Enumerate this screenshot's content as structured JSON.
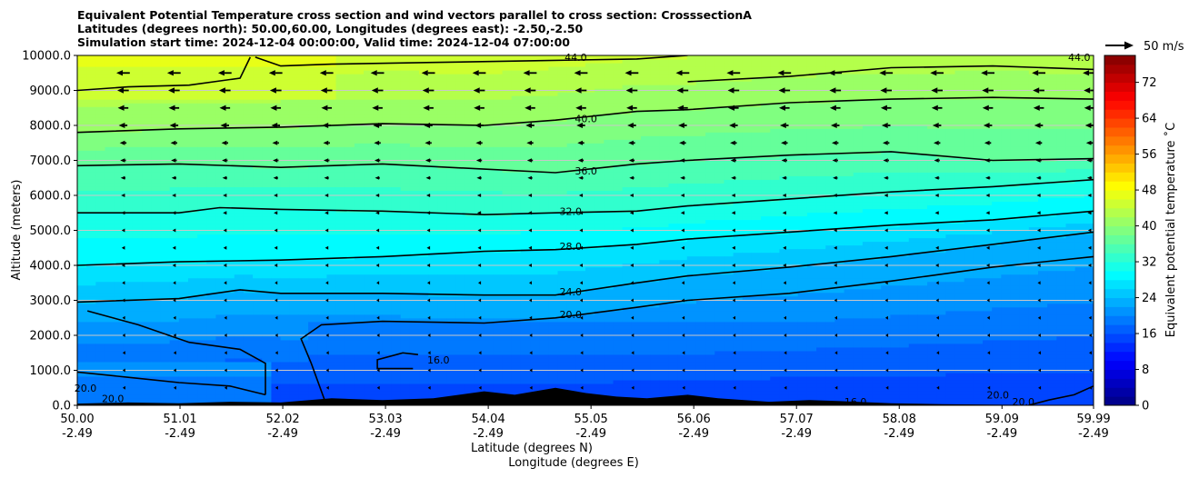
{
  "title_lines": [
    "Equivalent Potential Temperature cross section and wind vectors parallel to cross section: CrosssectionA",
    "Latitudes (degrees north): 50.00,60.00, Longitudes (degrees east): -2.50,-2.50",
    "Simulation start time: 2024-12-04 00:00:00, Valid time: 2024-12-04 07:00:00"
  ],
  "colors": {
    "terrain": "#000000",
    "contour": "#000000",
    "grid": "#c8c8c8"
  },
  "chart_data": {
    "type": "heatmap",
    "variable": "Equivalent potential temperature",
    "xlabel_lines": [
      "Latitude (degrees N)",
      "Longitude (degrees E)"
    ],
    "ylabel": "Altitude (meters)",
    "x_ticks": [
      {
        "lat": "50.00",
        "lon": "-2.49"
      },
      {
        "lat": "51.01",
        "lon": "-2.49"
      },
      {
        "lat": "52.02",
        "lon": "-2.49"
      },
      {
        "lat": "53.03",
        "lon": "-2.49"
      },
      {
        "lat": "54.04",
        "lon": "-2.49"
      },
      {
        "lat": "55.05",
        "lon": "-2.49"
      },
      {
        "lat": "56.06",
        "lon": "-2.49"
      },
      {
        "lat": "57.07",
        "lon": "-2.49"
      },
      {
        "lat": "58.08",
        "lon": "-2.49"
      },
      {
        "lat": "59.09",
        "lon": "-2.49"
      },
      {
        "lat": "59.99",
        "lon": "-2.49"
      }
    ],
    "x_range": [
      50.0,
      59.99
    ],
    "y_ticks": [
      "0.0",
      "1000.0",
      "2000.0",
      "3000.0",
      "4000.0",
      "5000.0",
      "6000.0",
      "7000.0",
      "8000.0",
      "9000.0",
      "10000.0"
    ],
    "y_range": [
      0,
      10000
    ],
    "grid": "horizontal",
    "colorbar": {
      "label": "Equivalent potential temperature $^\\circ$C",
      "label_display": "Equivalent potential temperature ˚C",
      "ticks": [
        "0",
        "8",
        "16",
        "24",
        "32",
        "40",
        "48",
        "56",
        "64",
        "72"
      ],
      "range": [
        0,
        78
      ],
      "colormap": "jet"
    },
    "quiver_key": {
      "label": "50 m/s",
      "value": 50
    },
    "contour_levels": [
      16,
      20,
      24,
      28,
      32,
      36,
      40,
      44
    ],
    "contour_labels": [
      {
        "text": "44.0",
        "lat": 54.9,
        "alt": 9950
      },
      {
        "text": "40.0",
        "lat": 55.0,
        "alt": 8200
      },
      {
        "text": "36.0",
        "lat": 55.0,
        "alt": 6700
      },
      {
        "text": "32.0",
        "lat": 54.85,
        "alt": 5550
      },
      {
        "text": "28.0",
        "lat": 54.85,
        "alt": 4550
      },
      {
        "text": "24.0",
        "lat": 54.85,
        "alt": 3250
      },
      {
        "text": "20.0",
        "lat": 54.85,
        "alt": 2600
      },
      {
        "text": "16.0",
        "lat": 53.55,
        "alt": 1300
      },
      {
        "text": "20.0",
        "lat": 50.08,
        "alt": 500
      },
      {
        "text": "20.0",
        "lat": 50.35,
        "alt": 200
      },
      {
        "text": "16.0",
        "lat": 56.15,
        "alt": 100
      },
      {
        "text": "16.0",
        "lat": 57.65,
        "alt": 100
      },
      {
        "text": "20.0",
        "lat": 59.05,
        "alt": 300
      },
      {
        "text": "20.0",
        "lat": 59.3,
        "alt": 100
      },
      {
        "text": "44.0",
        "lat": 59.85,
        "alt": 9950
      }
    ],
    "isotherms": [
      {
        "level": 44,
        "points": [
          [
            51.75,
            9950
          ],
          [
            52.0,
            9700
          ],
          [
            52.5,
            9750
          ],
          [
            53.5,
            9800
          ],
          [
            54.5,
            9850
          ],
          [
            55.5,
            9900
          ],
          [
            56.0,
            10000
          ]
        ]
      },
      {
        "level": 44,
        "points": [
          [
            51.7,
            9950
          ],
          [
            51.6,
            9350
          ],
          [
            51.1,
            9150
          ],
          [
            50.5,
            9100
          ],
          [
            50.0,
            9000
          ]
        ]
      },
      {
        "level": 44,
        "points": [
          [
            56.0,
            9250
          ],
          [
            57.0,
            9400
          ],
          [
            58.0,
            9650
          ],
          [
            59.0,
            9700
          ],
          [
            59.99,
            9600
          ]
        ]
      },
      {
        "level": 40,
        "points": [
          [
            50.0,
            7800
          ],
          [
            51.0,
            7900
          ],
          [
            52.0,
            7950
          ],
          [
            53.0,
            8050
          ],
          [
            54.0,
            8000
          ],
          [
            54.7,
            8150
          ],
          [
            55.5,
            8400
          ],
          [
            56.0,
            8450
          ],
          [
            57.0,
            8650
          ],
          [
            58.0,
            8750
          ],
          [
            59.0,
            8800
          ],
          [
            59.99,
            8750
          ]
        ]
      },
      {
        "level": 36,
        "points": [
          [
            50.0,
            6850
          ],
          [
            51.0,
            6900
          ],
          [
            52.0,
            6800
          ],
          [
            53.0,
            6900
          ],
          [
            54.0,
            6750
          ],
          [
            54.7,
            6650
          ],
          [
            55.5,
            6900
          ],
          [
            56.0,
            7000
          ],
          [
            57.0,
            7150
          ],
          [
            58.0,
            7250
          ],
          [
            59.0,
            7000
          ],
          [
            59.99,
            7050
          ]
        ]
      },
      {
        "level": 32,
        "points": [
          [
            50.0,
            5500
          ],
          [
            51.0,
            5500
          ],
          [
            51.4,
            5650
          ],
          [
            52.0,
            5600
          ],
          [
            53.0,
            5550
          ],
          [
            54.0,
            5450
          ],
          [
            54.7,
            5500
          ],
          [
            55.5,
            5550
          ],
          [
            56.0,
            5700
          ],
          [
            57.0,
            5900
          ],
          [
            58.0,
            6100
          ],
          [
            59.0,
            6250
          ],
          [
            59.99,
            6450
          ]
        ]
      },
      {
        "level": 28,
        "points": [
          [
            50.0,
            4000
          ],
          [
            51.0,
            4100
          ],
          [
            52.0,
            4150
          ],
          [
            53.0,
            4250
          ],
          [
            54.0,
            4400
          ],
          [
            54.7,
            4450
          ],
          [
            55.5,
            4600
          ],
          [
            56.0,
            4750
          ],
          [
            57.0,
            4950
          ],
          [
            58.0,
            5150
          ],
          [
            59.0,
            5300
          ],
          [
            59.99,
            5550
          ]
        ]
      },
      {
        "level": 24,
        "points": [
          [
            50.0,
            2950
          ],
          [
            51.0,
            3050
          ],
          [
            51.6,
            3300
          ],
          [
            52.0,
            3200
          ],
          [
            53.0,
            3200
          ],
          [
            54.0,
            3150
          ],
          [
            54.7,
            3150
          ],
          [
            55.5,
            3500
          ],
          [
            56.0,
            3700
          ],
          [
            57.0,
            3950
          ],
          [
            58.0,
            4250
          ],
          [
            59.0,
            4600
          ],
          [
            59.99,
            4950
          ]
        ]
      },
      {
        "level": 20,
        "points": [
          [
            50.1,
            2700
          ],
          [
            50.6,
            2300
          ],
          [
            51.1,
            1800
          ],
          [
            51.6,
            1600
          ],
          [
            51.85,
            1200
          ],
          [
            51.85,
            700
          ],
          [
            51.85,
            300
          ]
        ]
      },
      {
        "level": 20,
        "points": [
          [
            52.45,
            0
          ],
          [
            52.3,
            1200
          ],
          [
            52.2,
            1900
          ],
          [
            52.4,
            2300
          ],
          [
            53.0,
            2400
          ],
          [
            54.0,
            2350
          ],
          [
            54.7,
            2500
          ],
          [
            55.5,
            2800
          ],
          [
            56.0,
            3000
          ],
          [
            57.0,
            3200
          ],
          [
            58.0,
            3550
          ],
          [
            59.0,
            3950
          ],
          [
            59.99,
            4250
          ]
        ]
      },
      {
        "level": 20,
        "points": [
          [
            50.0,
            950
          ],
          [
            50.5,
            800
          ],
          [
            51.0,
            650
          ],
          [
            51.5,
            550
          ],
          [
            51.85,
            300
          ]
        ]
      },
      {
        "level": 16,
        "points": [
          [
            53.3,
            1050
          ],
          [
            52.95,
            1050
          ],
          [
            52.95,
            1300
          ],
          [
            53.2,
            1500
          ],
          [
            53.35,
            1450
          ]
        ]
      },
      {
        "level": 20,
        "points": [
          [
            59.35,
            0
          ],
          [
            59.55,
            150
          ],
          [
            59.8,
            300
          ],
          [
            59.99,
            550
          ]
        ]
      }
    ],
    "terrain": [
      [
        50.0,
        50
      ],
      [
        50.5,
        80
      ],
      [
        51.0,
        60
      ],
      [
        51.5,
        100
      ],
      [
        52.0,
        80
      ],
      [
        52.5,
        200
      ],
      [
        53.0,
        150
      ],
      [
        53.5,
        200
      ],
      [
        54.0,
        400
      ],
      [
        54.3,
        300
      ],
      [
        54.7,
        500
      ],
      [
        55.0,
        350
      ],
      [
        55.3,
        250
      ],
      [
        55.6,
        200
      ],
      [
        56.0,
        300
      ],
      [
        56.3,
        200
      ],
      [
        56.8,
        100
      ],
      [
        57.2,
        150
      ],
      [
        57.5,
        120
      ],
      [
        58.0,
        60
      ],
      [
        58.5,
        30
      ],
      [
        59.0,
        20
      ],
      [
        59.5,
        10
      ],
      [
        59.99,
        5
      ]
    ],
    "wind_field": {
      "altitudes": [
        9500,
        9000,
        8500,
        8000,
        7500,
        7000,
        6500,
        6000,
        5500,
        5000,
        4500,
        4000,
        3500,
        3000,
        2500,
        2000,
        1500,
        1000,
        500
      ],
      "speeds": [
        14,
        12,
        11,
        9,
        7,
        6,
        5,
        4,
        4,
        3,
        3,
        3,
        2,
        2,
        1.5,
        1.2,
        1,
        1,
        0.8
      ]
    }
  }
}
